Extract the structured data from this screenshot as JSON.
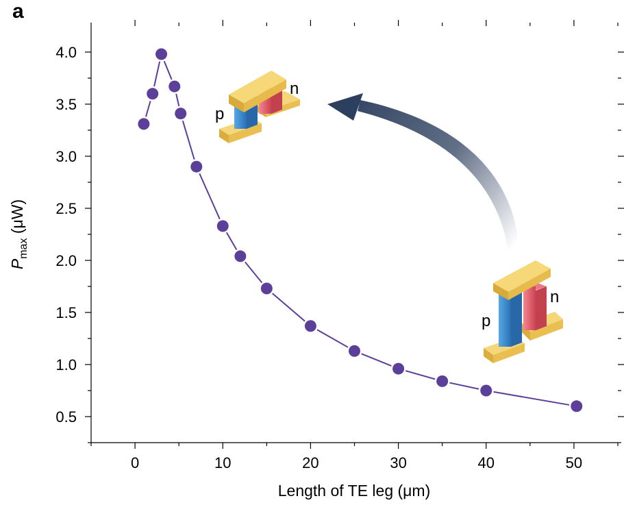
{
  "panel_label": "a",
  "chart_data": {
    "type": "line",
    "xlabel": "Length of TE leg (μm)",
    "ylabel_main": "P",
    "ylabel_sub": "max",
    "ylabel_unit": " (μW)",
    "xlim": [
      -5,
      55
    ],
    "ylim": [
      0.25,
      4.25
    ],
    "xticks": [
      0,
      10,
      20,
      30,
      40,
      50
    ],
    "yticks": [
      0.5,
      1.0,
      1.5,
      2.0,
      2.5,
      3.0,
      3.5,
      4.0
    ],
    "xtick_labels": [
      "0",
      "10",
      "20",
      "30",
      "40",
      "50"
    ],
    "ytick_labels": [
      "0.5",
      "1.0",
      "1.5",
      "2.0",
      "2.5",
      "3.0",
      "3.5",
      "4.0"
    ],
    "grid": false,
    "series": [
      {
        "color": "#5b3f99",
        "x": [
          1,
          2,
          3,
          4.5,
          5.2,
          7,
          10,
          12,
          15,
          20,
          25,
          30,
          35,
          40,
          50.3
        ],
        "y": [
          3.31,
          3.6,
          3.98,
          3.67,
          3.41,
          2.9,
          2.33,
          2.04,
          1.73,
          1.37,
          1.13,
          0.96,
          0.84,
          0.75,
          0.6
        ]
      }
    ]
  },
  "illustrations": {
    "short_leg_device": {
      "p_label": "p",
      "n_label": "n"
    },
    "long_leg_device": {
      "p_label": "p",
      "n_label": "n"
    }
  },
  "colors": {
    "marker": "#5b3f99",
    "p_leg": "#3f8fd1",
    "n_leg": "#dd5b67",
    "electrode": "#f1cc67",
    "arrow": "#2d3f5e"
  }
}
